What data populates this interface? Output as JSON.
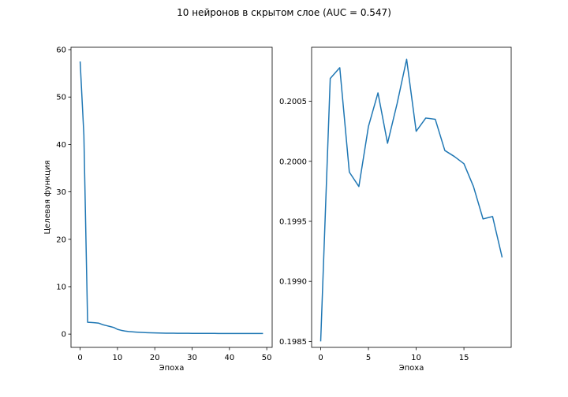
{
  "figure": {
    "title": "10 нейронов в скрытом слое (AUC = 0.547)"
  },
  "chart_data": [
    {
      "type": "line",
      "xlabel": "Эпоха",
      "ylabel": "Целевая функция",
      "xlim": [
        -2.45,
        51.45
      ],
      "ylim": [
        -2.8,
        60.5
      ],
      "xticks": [
        0,
        10,
        20,
        30,
        40,
        50
      ],
      "xtick_labels": [
        "0",
        "10",
        "20",
        "30",
        "40",
        "50"
      ],
      "yticks": [
        0,
        10,
        20,
        30,
        40,
        50,
        60
      ],
      "ytick_labels": [
        "0",
        "10",
        "20",
        "30",
        "40",
        "50",
        "60"
      ],
      "grid": false,
      "line_color": "#1f77b4",
      "x": [
        0,
        1,
        2,
        3,
        4,
        5,
        6,
        7,
        8,
        9,
        10,
        11,
        12,
        13,
        14,
        15,
        16,
        17,
        18,
        19,
        20,
        21,
        22,
        23,
        24,
        25,
        26,
        27,
        28,
        29,
        30,
        31,
        32,
        33,
        34,
        35,
        36,
        37,
        38,
        39,
        40,
        41,
        42,
        43,
        44,
        45,
        46,
        47,
        48,
        49
      ],
      "y": [
        57.5,
        42.0,
        2.5,
        2.45,
        2.4,
        2.3,
        2.0,
        1.8,
        1.6,
        1.4,
        1.0,
        0.8,
        0.65,
        0.55,
        0.48,
        0.42,
        0.37,
        0.33,
        0.3,
        0.27,
        0.25,
        0.23,
        0.21,
        0.2,
        0.19,
        0.18,
        0.17,
        0.17,
        0.16,
        0.16,
        0.15,
        0.15,
        0.15,
        0.14,
        0.14,
        0.14,
        0.14,
        0.13,
        0.13,
        0.13,
        0.13,
        0.13,
        0.13,
        0.12,
        0.12,
        0.12,
        0.12,
        0.12,
        0.12,
        0.12
      ]
    },
    {
      "type": "line",
      "xlabel": "Эпоха",
      "ylabel": "",
      "xlim": [
        -0.95,
        19.95
      ],
      "ylim": [
        0.19845,
        0.20095
      ],
      "xticks": [
        0,
        5,
        10,
        15
      ],
      "xtick_labels": [
        "0",
        "5",
        "10",
        "15"
      ],
      "yticks": [
        0.1985,
        0.199,
        0.1995,
        0.2,
        0.2005
      ],
      "ytick_labels": [
        "0.1985",
        "0.1990",
        "0.1995",
        "0.2000",
        "0.2005"
      ],
      "grid": false,
      "line_color": "#1f77b4",
      "x": [
        0,
        1,
        2,
        3,
        4,
        5,
        6,
        7,
        8,
        9,
        10,
        11,
        12,
        13,
        14,
        15,
        16,
        17,
        18,
        19
      ],
      "y": [
        0.1985,
        0.20069,
        0.20078,
        0.19991,
        0.19979,
        0.20029,
        0.20057,
        0.20015,
        0.20048,
        0.20085,
        0.20025,
        0.20036,
        0.20035,
        0.20009,
        0.20004,
        0.19998,
        0.19979,
        0.19952,
        0.19954,
        0.1992
      ]
    }
  ]
}
